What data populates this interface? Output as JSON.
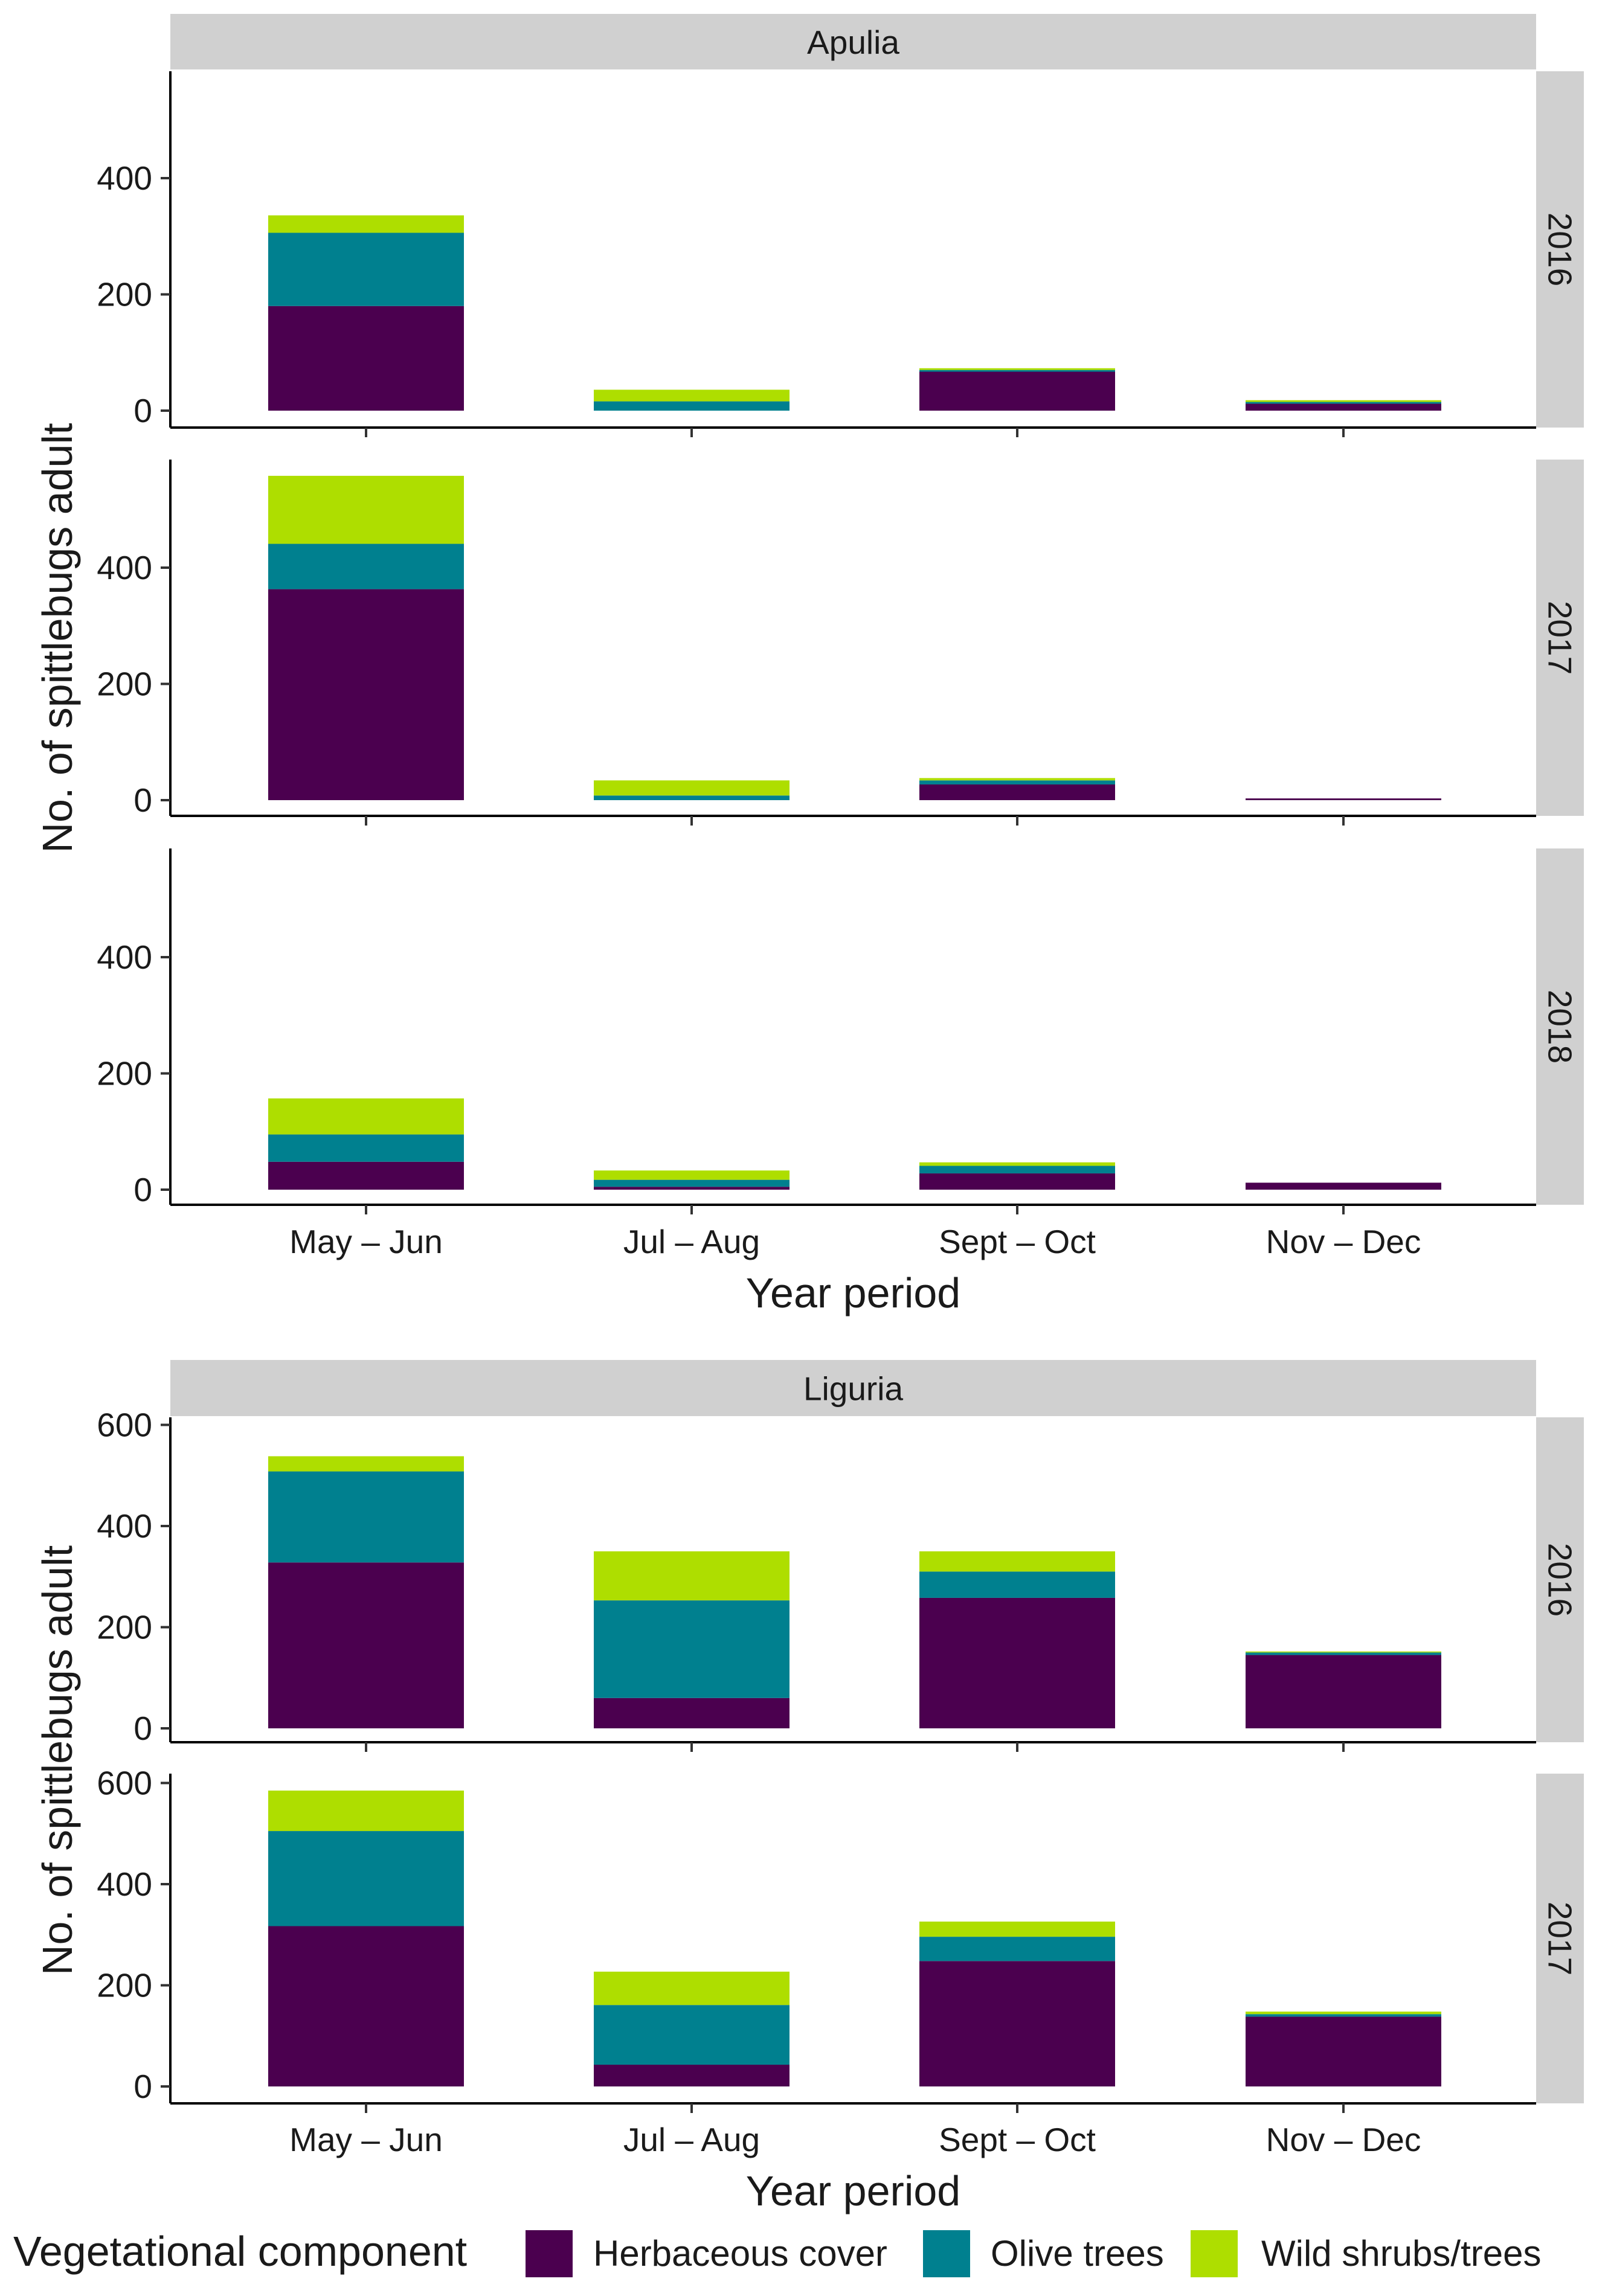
{
  "chart_data": [
    {
      "type": "bar",
      "stacked": true,
      "facet_title": "Apulia",
      "xlabel": "Year period",
      "ylabel": "No. of spittlebugs adult",
      "categories": [
        "May – Jun",
        "Jul – Aug",
        "Sept – Oct",
        "Nov – Dec"
      ],
      "ylim": [
        0,
        580
      ],
      "yticks": [
        0,
        200,
        400
      ],
      "ytick_labels": [
        "0",
        "200",
        "400"
      ],
      "panels": [
        {
          "label": "2016",
          "series": [
            {
              "name": "Herbaceous cover",
              "values": [
                180,
                0,
                67,
                12
              ]
            },
            {
              "name": "Olive trees",
              "values": [
                126,
                16,
                3,
                3
              ]
            },
            {
              "name": "Wild shrubs/trees",
              "values": [
                30,
                20,
                3,
                3
              ]
            }
          ]
        },
        {
          "label": "2017",
          "series": [
            {
              "name": "Herbaceous cover",
              "values": [
                363,
                0,
                27,
                3
              ]
            },
            {
              "name": "Olive trees",
              "values": [
                78,
                8,
                7,
                0
              ]
            },
            {
              "name": "Wild shrubs/trees",
              "values": [
                117,
                26,
                4,
                0
              ]
            }
          ]
        },
        {
          "label": "2018",
          "series": [
            {
              "name": "Herbaceous cover",
              "values": [
                48,
                5,
                28,
                12
              ]
            },
            {
              "name": "Olive trees",
              "values": [
                47,
                12,
                13,
                0
              ]
            },
            {
              "name": "Wild shrubs/trees",
              "values": [
                62,
                16,
                6,
                0
              ]
            }
          ]
        }
      ]
    },
    {
      "type": "bar",
      "stacked": true,
      "facet_title": "Liguria",
      "xlabel": "Year period",
      "ylabel": "No. of spittlebugs adult",
      "categories": [
        "May – Jun",
        "Jul – Aug",
        "Sept – Oct",
        "Nov – Dec"
      ],
      "ylim": [
        0,
        620
      ],
      "yticks": [
        0,
        200,
        400,
        600
      ],
      "ytick_labels": [
        "0",
        "200",
        "400",
        "600"
      ],
      "panels": [
        {
          "label": "2016",
          "series": [
            {
              "name": "Herbaceous cover",
              "values": [
                328,
                60,
                258,
                145
              ]
            },
            {
              "name": "Olive trees",
              "values": [
                180,
                193,
                52,
                5
              ]
            },
            {
              "name": "Wild shrubs/trees",
              "values": [
                30,
                97,
                40,
                2
              ]
            }
          ]
        },
        {
          "label": "2017",
          "series": [
            {
              "name": "Herbaceous cover",
              "values": [
                317,
                43,
                248,
                138
              ]
            },
            {
              "name": "Olive trees",
              "values": [
                188,
                118,
                48,
                5
              ]
            },
            {
              "name": "Wild shrubs/trees",
              "values": [
                80,
                66,
                30,
                5
              ]
            }
          ]
        }
      ]
    }
  ],
  "legend": {
    "title": "Vegetational component",
    "items": [
      {
        "name": "Herbaceous cover",
        "color": "#4b004f"
      },
      {
        "name": "Olive trees",
        "color": "#00808f"
      },
      {
        "name": "Wild shrubs/trees",
        "color": "#aede00"
      }
    ]
  }
}
